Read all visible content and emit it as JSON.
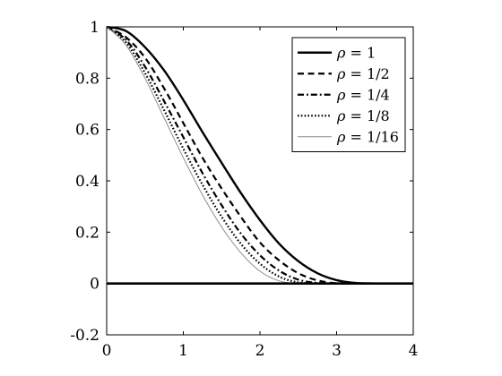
{
  "chart_data": {
    "type": "line",
    "title": "",
    "xlabel": "",
    "ylabel": "",
    "xlim": [
      0,
      4
    ],
    "ylim": [
      -0.2,
      1
    ],
    "xticks": [
      {
        "value": 0,
        "label": "0"
      },
      {
        "value": 1,
        "label": "1"
      },
      {
        "value": 2,
        "label": "2"
      },
      {
        "value": 3,
        "label": "3"
      },
      {
        "value": 4,
        "label": "4"
      }
    ],
    "yticks": [
      {
        "value": -0.2,
        "label": "-0.2"
      },
      {
        "value": 0,
        "label": "0"
      },
      {
        "value": 0.2,
        "label": "0.2"
      },
      {
        "value": 0.4,
        "label": "0.4"
      },
      {
        "value": 0.6,
        "label": "0.6"
      },
      {
        "value": 0.8,
        "label": "0.8"
      },
      {
        "value": 1,
        "label": "1"
      }
    ],
    "grid": false,
    "legend_position": "top-right",
    "baseline": {
      "y": 0,
      "color": "#000000"
    },
    "series": [
      {
        "name": "1",
        "name_symbol": "ρ",
        "style": "solid",
        "color": "#000000",
        "x": [
          0,
          0.25,
          0.5,
          0.75,
          1,
          1.25,
          1.5,
          1.75,
          2,
          2.25,
          2.5,
          2.75,
          3,
          3.25,
          3.5,
          3.75,
          4
        ],
        "y": [
          1,
          0.984,
          0.921,
          0.83,
          0.715,
          0.59,
          0.47,
          0.353,
          0.247,
          0.155,
          0.087,
          0.04,
          0.013,
          0.002,
          0,
          0,
          0
        ]
      },
      {
        "name": "1/2",
        "name_symbol": "ρ",
        "style": "dashed",
        "color": "#000000",
        "x": [
          0,
          0.25,
          0.5,
          0.75,
          1,
          1.25,
          1.5,
          1.75,
          2,
          2.25,
          2.5,
          2.75,
          3,
          3.25,
          3.5,
          3.75,
          4
        ],
        "y": [
          1,
          0.96,
          0.88,
          0.76,
          0.625,
          0.49,
          0.37,
          0.26,
          0.16,
          0.09,
          0.04,
          0.012,
          0.001,
          0,
          0,
          0,
          0
        ]
      },
      {
        "name": "1/4",
        "name_symbol": "ρ",
        "style": "dashdot",
        "color": "#000000",
        "x": [
          0,
          0.25,
          0.5,
          0.75,
          1,
          1.25,
          1.5,
          1.75,
          2,
          2.25,
          2.5,
          2.75,
          3,
          3.25,
          3.5,
          3.75,
          4
        ],
        "y": [
          1,
          0.95,
          0.845,
          0.71,
          0.57,
          0.43,
          0.305,
          0.195,
          0.11,
          0.05,
          0.015,
          0.002,
          0,
          0,
          0,
          0,
          0
        ]
      },
      {
        "name": "1/8",
        "name_symbol": "ρ",
        "style": "dotted",
        "color": "#000000",
        "x": [
          0,
          0.25,
          0.5,
          0.75,
          1,
          1.25,
          1.5,
          1.75,
          2,
          2.25,
          2.5,
          2.75,
          3,
          3.25,
          3.5,
          3.75,
          4
        ],
        "y": [
          1,
          0.94,
          0.82,
          0.675,
          0.525,
          0.385,
          0.26,
          0.155,
          0.077,
          0.027,
          0.004,
          0,
          0,
          0,
          0,
          0,
          0
        ]
      },
      {
        "name": "1/16",
        "name_symbol": "ρ",
        "style": "solid-thin",
        "color": "#8c8c8c",
        "x": [
          0,
          0.25,
          0.5,
          0.75,
          1,
          1.25,
          1.5,
          1.75,
          2,
          2.25,
          2.5,
          2.75,
          3,
          3.25,
          3.5,
          3.75,
          4
        ],
        "y": [
          1,
          0.93,
          0.8,
          0.645,
          0.49,
          0.345,
          0.22,
          0.12,
          0.048,
          0.01,
          0,
          0,
          0,
          0,
          0,
          0,
          0
        ]
      }
    ]
  }
}
